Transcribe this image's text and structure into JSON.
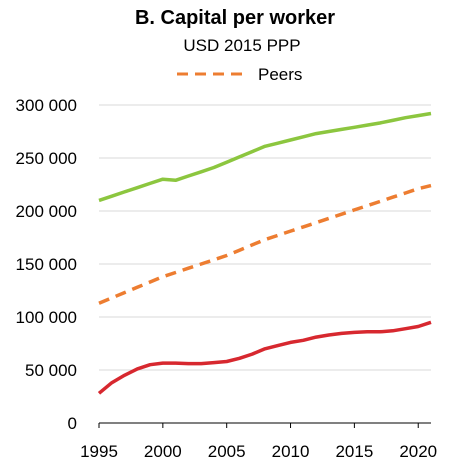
{
  "chart_data": {
    "type": "line",
    "title": "B. Capital per worker",
    "subtitle": "USD 2015 PPP",
    "xlabel": "",
    "ylabel": "",
    "xlim": [
      1995,
      2021
    ],
    "ylim": [
      0,
      300000
    ],
    "x_ticks": [
      1995,
      2000,
      2005,
      2010,
      2015,
      2020
    ],
    "x_tick_labels": [
      "1995",
      "2000",
      "2005",
      "2010",
      "2015",
      "2020"
    ],
    "y_ticks": [
      0,
      50000,
      100000,
      150000,
      200000,
      250000,
      300000
    ],
    "y_tick_labels": [
      "0",
      "50 000",
      "100 000",
      "150 000",
      "200 000",
      "250 000",
      "300 000"
    ],
    "grid": "horizontal",
    "legend_position": "top",
    "x": [
      1995,
      1996,
      1997,
      1998,
      1999,
      2000,
      2001,
      2002,
      2003,
      2004,
      2005,
      2006,
      2007,
      2008,
      2009,
      2010,
      2011,
      2012,
      2013,
      2014,
      2015,
      2016,
      2017,
      2018,
      2019,
      2020,
      2021
    ],
    "series": [
      {
        "color": "#8cc63f",
        "dash": "solid",
        "values": [
          210000,
          214000,
          218000,
          222000,
          226000,
          230000,
          229000,
          233000,
          237000,
          241000,
          246000,
          251000,
          256000,
          261000,
          264000,
          267000,
          270000,
          273000,
          275000,
          277000,
          279000,
          281000,
          283000,
          285500,
          288000,
          290000,
          292000
        ]
      },
      {
        "name": "Peers",
        "color": "#ed7d31",
        "dash": "dashed",
        "values": [
          113000,
          118000,
          123000,
          128000,
          133000,
          138000,
          142000,
          146000,
          150000,
          154000,
          158000,
          163000,
          168000,
          173000,
          177000,
          181000,
          185000,
          189000,
          193000,
          197000,
          201000,
          205000,
          209000,
          213000,
          217000,
          221000,
          224000
        ]
      },
      {
        "color": "#d7282f",
        "dash": "solid",
        "values": [
          28000,
          38000,
          45000,
          51000,
          55000,
          56500,
          56500,
          56000,
          56000,
          57000,
          58000,
          61000,
          65000,
          70000,
          73000,
          76000,
          78000,
          81000,
          83000,
          84500,
          85500,
          86000,
          86000,
          87000,
          89000,
          91000,
          95000
        ]
      }
    ]
  }
}
